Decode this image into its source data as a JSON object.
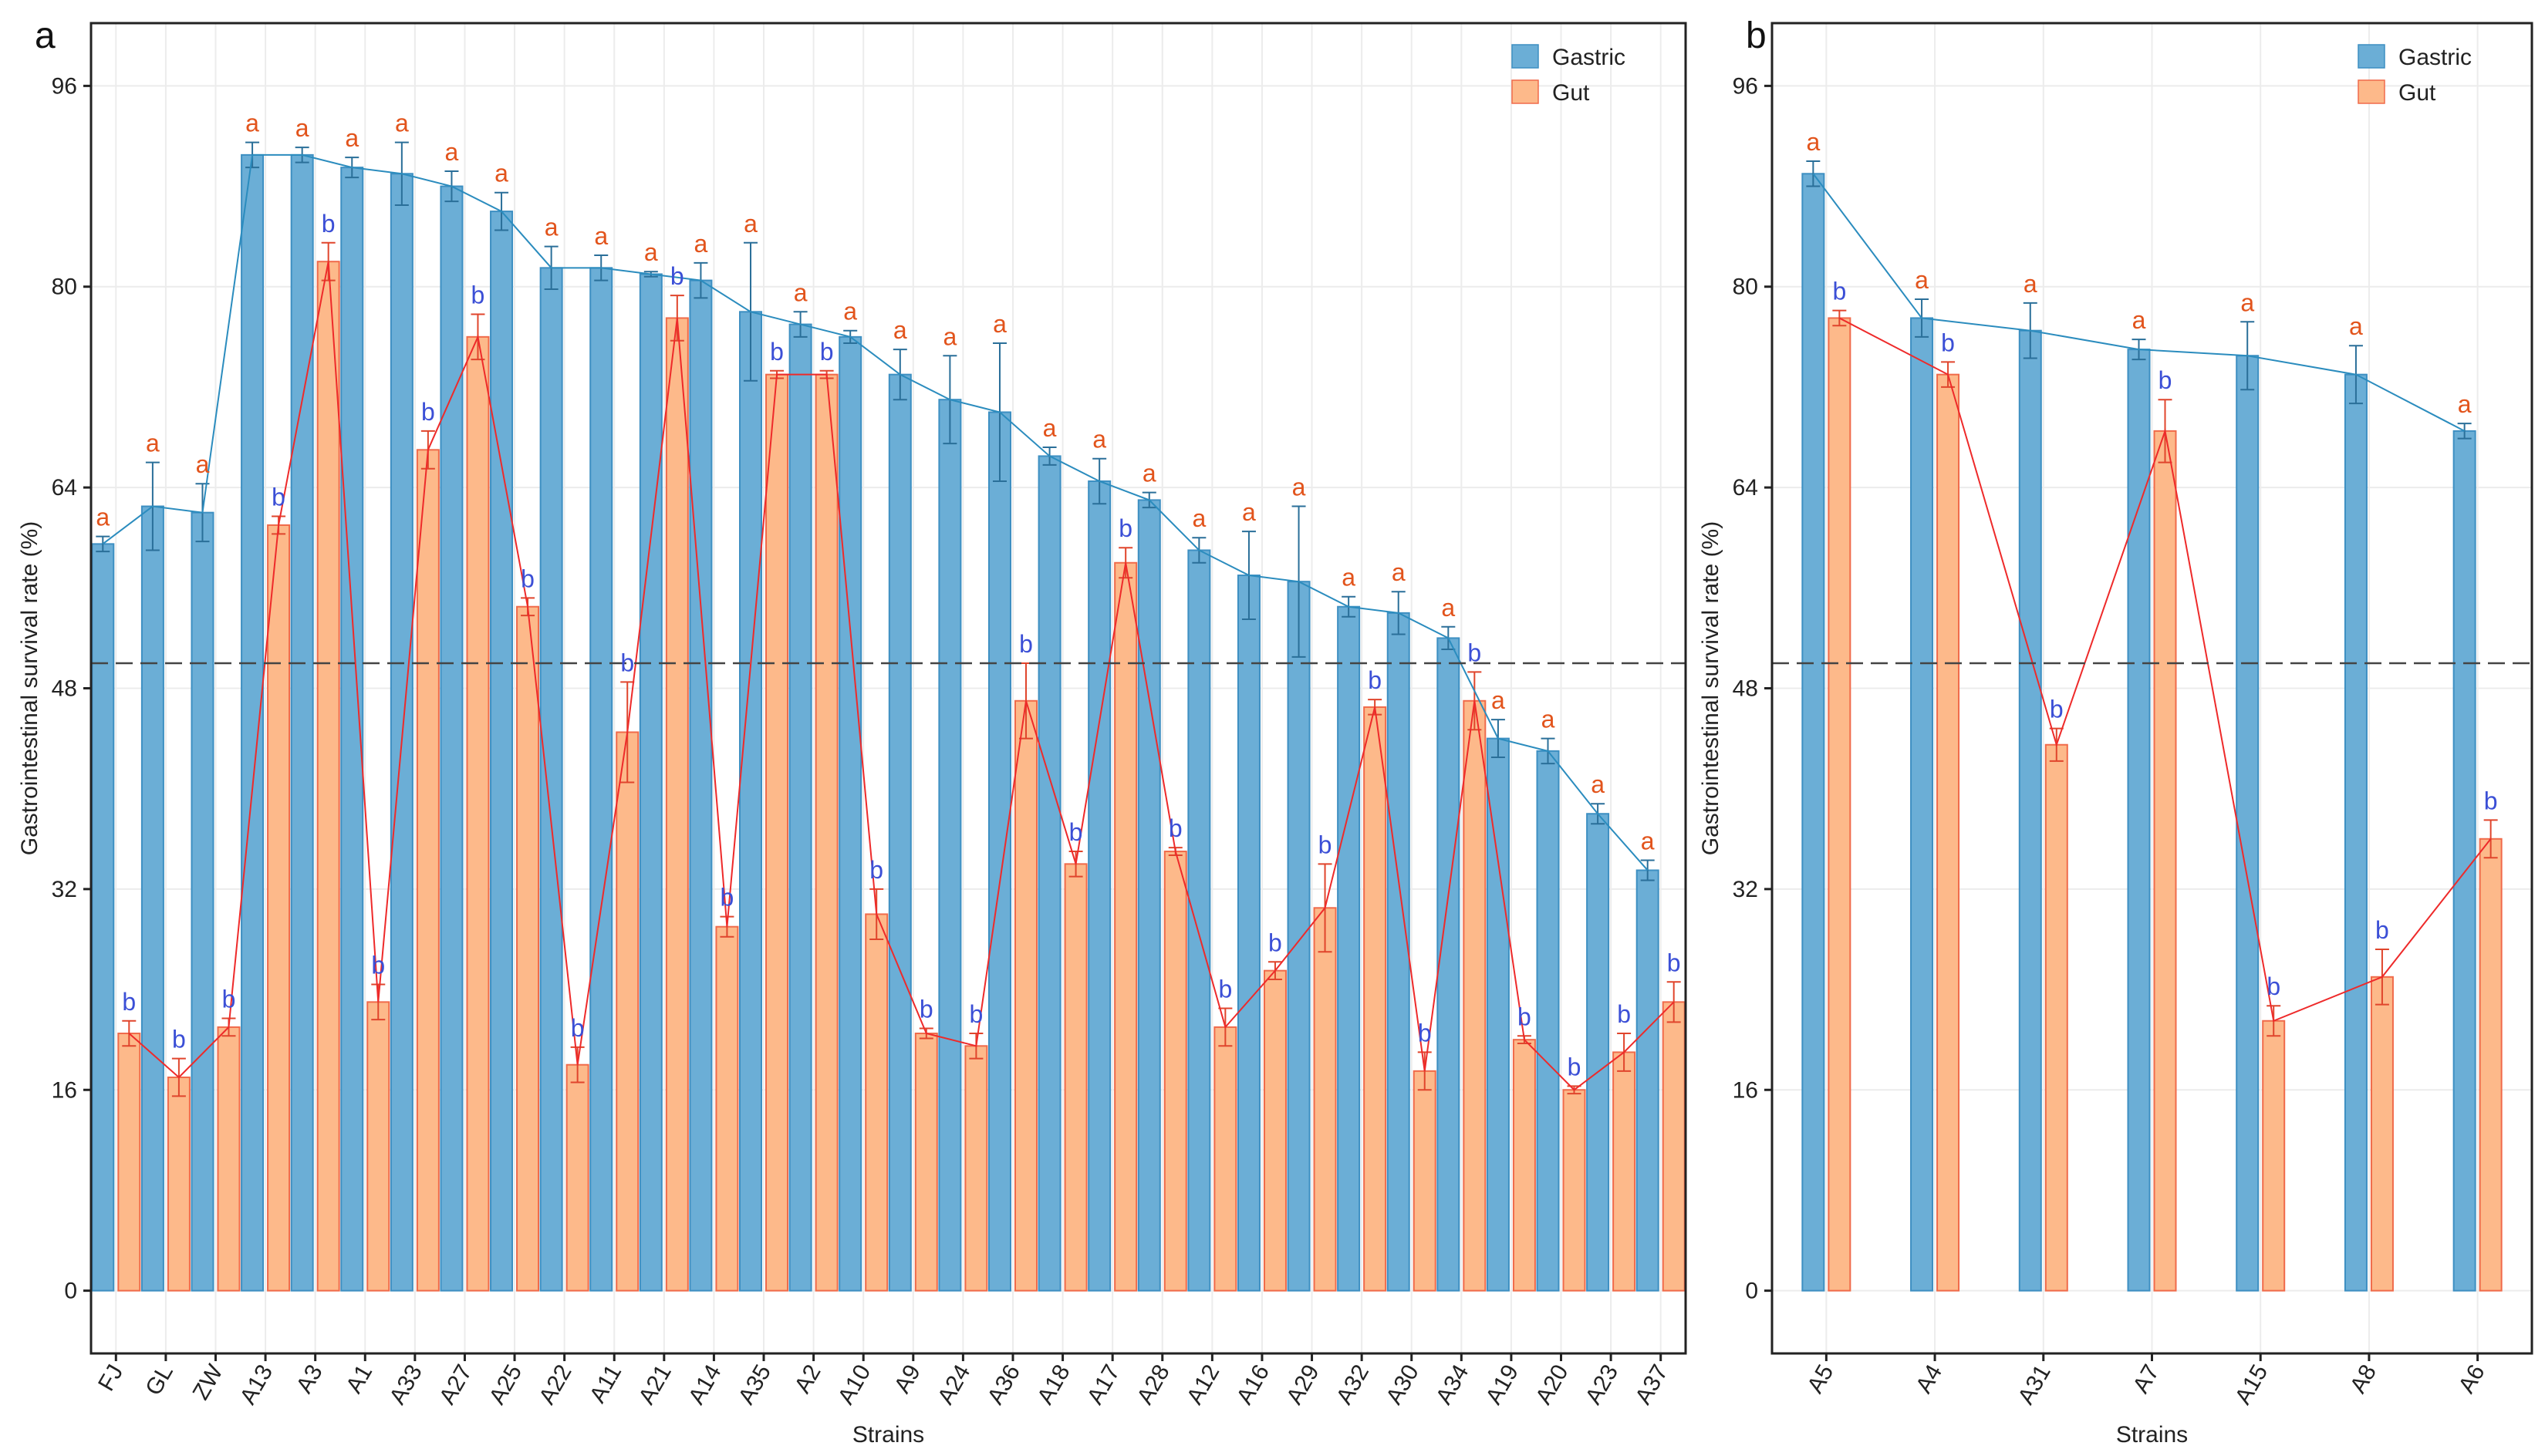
{
  "colors": {
    "gastric_fill": "#6baed6",
    "gastric_edge": "#3d8fc2",
    "gastric_line": "#2b8cbe",
    "gut_fill": "#fdb98a",
    "gut_edge": "#f06a4a",
    "gut_line": "#ee2a2a",
    "sig_a": "#e2541c",
    "sig_b": "#3b4fd6",
    "reference_line": "#444444"
  },
  "chart_data": [
    {
      "panel": "a",
      "type": "bar",
      "xlabel": "Strains",
      "ylabel": "Gastrointestinal survival rate (%)",
      "ylim": [
        -5,
        101
      ],
      "yticks": [
        "0",
        "16",
        "32",
        "48",
        "64",
        "80",
        "96"
      ],
      "grid": true,
      "legend_position": "top-right",
      "reference_line": 50,
      "categories": [
        "FJ",
        "GL",
        "ZW",
        "A13",
        "A3",
        "A1",
        "A33",
        "A27",
        "A25",
        "A22",
        "A11",
        "A21",
        "A14",
        "A35",
        "A2",
        "A10",
        "A9",
        "A24",
        "A36",
        "A18",
        "A17",
        "A28",
        "A12",
        "A16",
        "A29",
        "A32",
        "A30",
        "A34",
        "A19",
        "A20",
        "A23",
        "A37"
      ],
      "series": [
        {
          "name": "Gastric",
          "values": [
            59.5,
            62.5,
            62,
            90.5,
            90.5,
            89.5,
            89,
            88,
            86,
            81.5,
            81.5,
            81,
            80.5,
            78,
            77,
            76,
            73,
            71,
            70,
            66.5,
            64.5,
            63,
            59,
            57,
            56.5,
            54.5,
            54,
            52,
            44,
            43,
            38,
            33.5
          ],
          "errors": [
            0.6,
            3.5,
            2.3,
            1.0,
            0.6,
            0.8,
            2.5,
            1.2,
            1.5,
            1.7,
            1.0,
            0.2,
            1.4,
            5.5,
            1.0,
            0.5,
            2.0,
            3.5,
            5.5,
            0.7,
            1.8,
            0.6,
            1.0,
            3.5,
            6.0,
            0.8,
            1.7,
            0.9,
            1.5,
            1.0,
            0.8,
            0.8
          ],
          "letters": [
            "a",
            "a",
            "a",
            "a",
            "a",
            "a",
            "a",
            "a",
            "a",
            "a",
            "a",
            "a",
            "a",
            "a",
            "a",
            "a",
            "a",
            "a",
            "a",
            "a",
            "a",
            "a",
            "a",
            "a",
            "a",
            "a",
            "a",
            "a",
            "a",
            "a",
            "a",
            "a"
          ]
        },
        {
          "name": "Gut",
          "values": [
            20.5,
            17,
            21,
            61,
            82,
            23,
            67,
            76,
            54.5,
            18,
            44.5,
            77.5,
            29,
            73,
            73,
            30,
            20.5,
            19.5,
            47,
            34,
            58,
            35,
            21,
            25.5,
            30.5,
            46.5,
            17.5,
            47,
            20,
            16,
            19,
            23
          ],
          "errors": [
            1.0,
            1.5,
            0.7,
            0.7,
            1.5,
            1.4,
            1.5,
            1.8,
            0.7,
            1.4,
            4.0,
            1.8,
            0.8,
            0.3,
            0.3,
            2.0,
            0.4,
            1.0,
            3.0,
            1.0,
            1.2,
            0.3,
            1.5,
            0.7,
            3.5,
            0.6,
            1.5,
            2.3,
            0.3,
            0.3,
            1.5,
            1.6
          ],
          "letters": [
            "b",
            "b",
            "b",
            "b",
            "b",
            "b",
            "b",
            "b",
            "b",
            "b",
            "b",
            "b",
            "b",
            "b",
            "b",
            "b",
            "b",
            "b",
            "b",
            "b",
            "b",
            "b",
            "b",
            "b",
            "b",
            "b",
            "b",
            "b",
            "b",
            "b",
            "b",
            "b"
          ]
        }
      ]
    },
    {
      "panel": "b",
      "type": "bar",
      "xlabel": "Strains",
      "ylabel": "Gastrointestinal survival rate (%)",
      "ylim": [
        -5,
        101
      ],
      "yticks": [
        "0",
        "16",
        "32",
        "48",
        "64",
        "80",
        "96"
      ],
      "grid": true,
      "legend_position": "top-right",
      "reference_line": 50,
      "categories": [
        "A5",
        "A4",
        "A31",
        "A7",
        "A15",
        "A8",
        "A6"
      ],
      "series": [
        {
          "name": "Gastric",
          "values": [
            89,
            77.5,
            76.5,
            75,
            74.5,
            73,
            68.5
          ],
          "errors": [
            1.0,
            1.5,
            2.2,
            0.8,
            2.7,
            2.3,
            0.6
          ],
          "letters": [
            "a",
            "a",
            "a",
            "a",
            "a",
            "a",
            "a"
          ]
        },
        {
          "name": "Gut",
          "values": [
            77.5,
            73,
            43.5,
            68.5,
            21.5,
            25,
            36
          ],
          "errors": [
            0.6,
            1.0,
            1.3,
            2.5,
            1.2,
            2.2,
            1.5
          ],
          "letters": [
            "b",
            "b",
            "b",
            "b",
            "b",
            "b",
            "b"
          ]
        }
      ]
    }
  ]
}
